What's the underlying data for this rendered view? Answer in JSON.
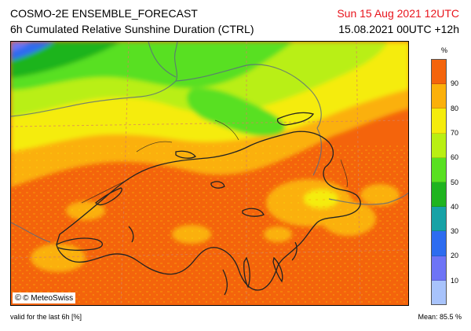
{
  "header": {
    "model": "COSMO-2E ENSEMBLE_FORECAST",
    "product": "6h Cumulated Relative Sunshine Duration (CTRL)",
    "valid_time": "Sun 15 Aug 2021 12UTC",
    "run_info": "15.08.2021 00UTC +12h"
  },
  "colors": {
    "valid_time": "#e8141c"
  },
  "map": {
    "copyright": "© MeteoSwiss",
    "copyright_icon": "meteoswiss-logo-icon"
  },
  "legend": {
    "unit": "%",
    "ticks": [
      "90",
      "80",
      "70",
      "60",
      "50",
      "40",
      "30",
      "20",
      "10"
    ],
    "swatches": [
      "#f4640c",
      "#fbb00a",
      "#f5ec0c",
      "#b9ef12",
      "#58e021",
      "#1fb41f",
      "#17a2a6",
      "#2d6cf0",
      "#6e74f6",
      "#a8c3fb"
    ]
  },
  "footer": {
    "note": "valid for the last 6h [%]",
    "mean": "Mean:   85.5 %"
  }
}
